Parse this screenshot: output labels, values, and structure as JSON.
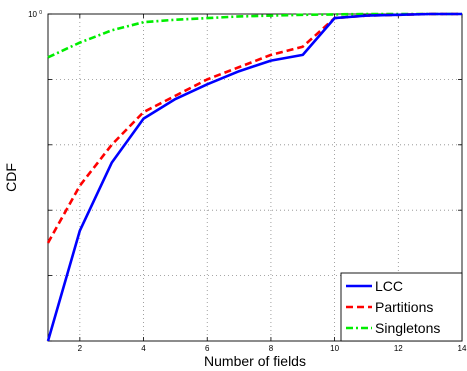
{
  "chart_data": {
    "type": "line",
    "title": "",
    "xlabel": "Number of fields",
    "ylabel": "CDF",
    "xlim": [
      1,
      14
    ],
    "ylim": [
      0.6,
      1.0
    ],
    "x_ticks": [
      2,
      4,
      6,
      8,
      10,
      12,
      14
    ],
    "x_tick_labels": [
      "2",
      "4",
      "6",
      "8",
      "10",
      "12",
      "14"
    ],
    "y_tick_top_label_base": "10",
    "y_tick_top_label_exp": "0",
    "y_grid_values": [
      0.6,
      0.68,
      0.76,
      0.84,
      0.92,
      1.0
    ],
    "grid": true,
    "legend_position": "bottom-right",
    "series": [
      {
        "name": "LCC",
        "color": "#0000ff",
        "style": "solid",
        "x": [
          1,
          2,
          3,
          4,
          5,
          6,
          7,
          8,
          9,
          10,
          11,
          12,
          13,
          14
        ],
        "y": [
          0.6,
          0.735,
          0.818,
          0.872,
          0.896,
          0.914,
          0.93,
          0.943,
          0.95,
          0.995,
          0.998,
          0.999,
          1.0,
          1.0
        ]
      },
      {
        "name": "Partitions",
        "color": "#ff0000",
        "style": "dashed",
        "x": [
          1,
          2,
          3,
          4,
          5,
          6,
          7,
          8,
          9,
          10,
          11,
          12,
          13,
          14
        ],
        "y": [
          0.72,
          0.79,
          0.84,
          0.88,
          0.9,
          0.92,
          0.935,
          0.95,
          0.96,
          0.995,
          0.998,
          0.999,
          1.0,
          1.0
        ]
      },
      {
        "name": "Singletons",
        "color": "#00ee00",
        "style": "dashdot",
        "x": [
          1,
          2,
          3,
          4,
          5,
          6,
          7,
          8,
          9,
          10,
          11,
          12,
          13,
          14
        ],
        "y": [
          0.947,
          0.965,
          0.98,
          0.99,
          0.993,
          0.995,
          0.997,
          0.998,
          0.999,
          0.9995,
          1.0,
          1.0,
          1.0,
          1.0
        ]
      }
    ]
  }
}
